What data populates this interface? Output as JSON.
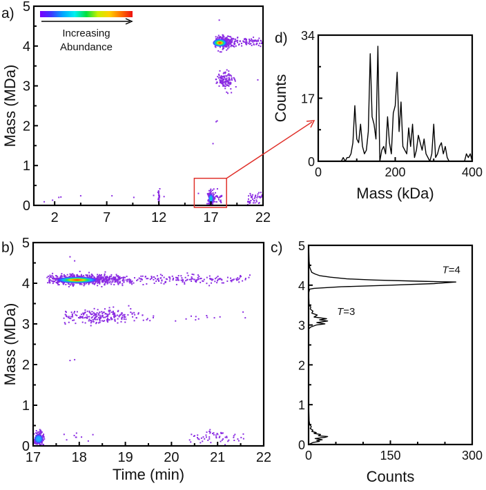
{
  "colors": {
    "scatter_low": "#8a2be2",
    "zoom_box": "#e0302a",
    "line": "#000000"
  },
  "colorbar": {
    "label_line1": "Increasing",
    "label_line2": "Abundance",
    "stops": [
      "#7b00ff",
      "#3a3aff",
      "#00a8ff",
      "#00f0f0",
      "#00e040",
      "#c8f000",
      "#ffd000",
      "#ff7000",
      "#ee1010"
    ]
  },
  "chart_data": [
    {
      "panel": "a",
      "panel_label": "a)",
      "type": "scatter",
      "xlabel": "",
      "ylabel": "Mass (MDa)",
      "xlim": [
        0,
        22
      ],
      "ylim": [
        0,
        5
      ],
      "xticks": [
        2,
        7,
        12,
        17,
        22
      ],
      "xtick_labels": [
        "2",
        "7",
        "12",
        "17",
        "22"
      ],
      "yticks": [
        0,
        1,
        2,
        3,
        4,
        5
      ],
      "ytick_labels": [
        "0",
        "1",
        "2",
        "3",
        "4",
        "5"
      ],
      "zoom_region": {
        "x": [
          15.4,
          18.5
        ],
        "y": [
          0,
          0.68
        ]
      },
      "clusters": [
        {
          "t": 18.3,
          "m": 4.1,
          "st": 0.5,
          "sm": 0.08,
          "n": 260,
          "tmin": 17.4,
          "tmax": 22
        },
        {
          "t": 20.6,
          "m": 4.1,
          "st": 0.9,
          "sm": 0.05,
          "n": 80,
          "tmin": 17.4,
          "tmax": 22
        },
        {
          "t": 18.3,
          "m": 3.15,
          "st": 0.45,
          "sm": 0.1,
          "n": 130,
          "tmin": 17.4,
          "tmax": 22
        },
        {
          "t": 17.0,
          "m": 0.18,
          "st": 0.15,
          "sm": 0.09,
          "n": 120,
          "tmin": 16.5,
          "tmax": 17.6
        },
        {
          "t": 21.2,
          "m": 0.2,
          "st": 0.45,
          "sm": 0.09,
          "n": 45,
          "tmin": 20.3,
          "tmax": 22
        },
        {
          "t": 12.0,
          "m": 0.2,
          "st": 0.05,
          "sm": 0.12,
          "n": 25,
          "tmin": 11.4,
          "tmax": 12.6
        },
        {
          "t": 17.6,
          "m": 0.18,
          "st": 0.4,
          "sm": 0.08,
          "n": 25,
          "tmin": 15.5,
          "tmax": 18.5
        }
      ],
      "isolated_points": [
        [
          1.0,
          0.09
        ],
        [
          1.8,
          0.13
        ],
        [
          2.4,
          0.2
        ],
        [
          2.6,
          0.21
        ],
        [
          4.5,
          0.24
        ],
        [
          7.5,
          0.24
        ],
        [
          9.6,
          0.2
        ],
        [
          11.5,
          0.25
        ],
        [
          12.5,
          0.22
        ],
        [
          15.8,
          0.3
        ],
        [
          17.5,
          2.1
        ],
        [
          17.6,
          2.12
        ],
        [
          17.2,
          1.55
        ],
        [
          17.8,
          4.65
        ],
        [
          22,
          4.25
        ],
        [
          21.5,
          3.15
        ]
      ],
      "hotspots": [
        {
          "t": 17.85,
          "m": 4.08,
          "rt": 0.7,
          "rm": 0.1,
          "peak": "#ee1010"
        },
        {
          "t": 17.0,
          "m": 0.17,
          "rt": 0.25,
          "rm": 0.12,
          "peak": "#00e0a0"
        }
      ]
    },
    {
      "panel": "b",
      "panel_label": "b)",
      "type": "scatter",
      "xlabel": "Time (min)",
      "ylabel": "Mass (MDa)",
      "xlim": [
        17,
        22
      ],
      "ylim": [
        0,
        5
      ],
      "xticks": [
        17,
        18,
        19,
        20,
        21,
        22
      ],
      "xtick_labels": [
        "17",
        "18",
        "19",
        "20",
        "21",
        "22"
      ],
      "yticks": [
        0,
        1,
        2,
        3,
        4,
        5
      ],
      "ytick_labels": [
        "0",
        "1",
        "2",
        "3",
        "4",
        "5"
      ],
      "clusters": [
        {
          "t": 18.1,
          "m": 4.09,
          "st": 0.5,
          "sm": 0.06,
          "n": 700,
          "tmin": 17.3,
          "tmax": 21.7
        },
        {
          "t": 20.3,
          "m": 4.1,
          "st": 0.8,
          "sm": 0.05,
          "n": 170,
          "tmin": 17.3,
          "tmax": 21.7
        },
        {
          "t": 18.5,
          "m": 3.18,
          "st": 0.45,
          "sm": 0.08,
          "n": 220,
          "tmin": 17.6,
          "tmax": 19.7
        },
        {
          "t": 20.8,
          "m": 3.18,
          "st": 0.5,
          "sm": 0.05,
          "n": 12,
          "tmin": 19.8,
          "tmax": 21.7
        },
        {
          "t": 17.12,
          "m": 0.17,
          "st": 0.06,
          "sm": 0.08,
          "n": 170,
          "tmin": 17.0,
          "tmax": 17.3
        },
        {
          "t": 21.0,
          "m": 0.22,
          "st": 0.4,
          "sm": 0.08,
          "n": 60,
          "tmin": 20.2,
          "tmax": 21.7
        },
        {
          "t": 17.9,
          "m": 0.22,
          "st": 0.2,
          "sm": 0.07,
          "n": 10,
          "tmin": 17.6,
          "tmax": 18.3
        }
      ],
      "isolated_points": [
        [
          17.8,
          4.65
        ],
        [
          17.9,
          4.55
        ],
        [
          17.8,
          2.1
        ],
        [
          17.9,
          2.12
        ],
        [
          21.6,
          3.15
        ],
        [
          21.7,
          4.2
        ]
      ],
      "hotspots": [
        {
          "t": 17.95,
          "m": 4.08,
          "rt": 0.45,
          "rm": 0.08,
          "peak": "#ee1010"
        },
        {
          "t": 17.12,
          "m": 0.17,
          "rt": 0.1,
          "rm": 0.12,
          "peak": "#20b0ff"
        }
      ]
    },
    {
      "panel": "c",
      "panel_label": "c)",
      "type": "line",
      "orientation": "horizontal",
      "xlabel": "Counts",
      "ylabel": "",
      "xlim": [
        0,
        300
      ],
      "ylim": [
        0,
        5
      ],
      "xticks": [
        0,
        150,
        300
      ],
      "xtick_labels": [
        "0",
        "150",
        "300"
      ],
      "yticks": [
        0,
        1,
        2,
        3,
        4,
        5
      ],
      "ytick_labels": [
        "0",
        "1",
        "2",
        "3",
        "4",
        "5"
      ],
      "annotations": [
        {
          "text_italic": "T",
          "text": "=4",
          "mass": 4.3,
          "counts": 245
        },
        {
          "text_italic": "T",
          "text": "=3",
          "mass": 3.25,
          "counts": 52
        }
      ],
      "mass": [
        0.0,
        0.05,
        0.08,
        0.1,
        0.12,
        0.15,
        0.18,
        0.2,
        0.22,
        0.25,
        0.28,
        0.3,
        0.33,
        0.36,
        0.4,
        0.45,
        0.5,
        0.6,
        1.0,
        2.0,
        2.9,
        2.95,
        3.0,
        3.03,
        3.06,
        3.1,
        3.13,
        3.16,
        3.2,
        3.25,
        3.3,
        3.35,
        3.4,
        3.45,
        3.5,
        3.8,
        3.9,
        3.92,
        3.96,
        4.0,
        4.04,
        4.08,
        4.1,
        4.13,
        4.16,
        4.2,
        4.24,
        4.28,
        4.32,
        4.38,
        4.45,
        4.6,
        5.0
      ],
      "counts": [
        0,
        8,
        20,
        15,
        25,
        12,
        30,
        35,
        18,
        22,
        10,
        14,
        6,
        8,
        3,
        5,
        2,
        1,
        0,
        0,
        0,
        4,
        14,
        30,
        15,
        35,
        20,
        33,
        10,
        16,
        6,
        8,
        3,
        4,
        1,
        0,
        2,
        10,
        60,
        150,
        230,
        270,
        200,
        120,
        70,
        40,
        20,
        12,
        6,
        4,
        2,
        1,
        0
      ]
    },
    {
      "panel": "d",
      "panel_label": "d)",
      "type": "line",
      "xlabel": "Mass (kDa)",
      "ylabel": "Counts",
      "xlim": [
        0,
        400
      ],
      "ylim": [
        0,
        34
      ],
      "xticks": [
        0,
        200,
        400
      ],
      "xtick_labels": [
        "0",
        "200",
        "400"
      ],
      "yticks": [
        0,
        17,
        34
      ],
      "ytick_labels": [
        "0",
        "17",
        "34"
      ],
      "x": [
        60,
        65,
        70,
        75,
        80,
        85,
        90,
        95,
        100,
        105,
        110,
        115,
        120,
        125,
        130,
        135,
        140,
        145,
        150,
        155,
        160,
        165,
        170,
        175,
        180,
        185,
        190,
        195,
        200,
        205,
        210,
        215,
        220,
        225,
        230,
        235,
        240,
        245,
        250,
        255,
        260,
        265,
        270,
        275,
        280,
        285,
        290,
        295,
        300,
        305,
        310,
        315,
        320,
        325,
        330,
        335,
        340,
        345,
        380,
        385,
        390,
        395,
        400
      ],
      "y": [
        0,
        1,
        0,
        1,
        1,
        2,
        5,
        15,
        6,
        5,
        10,
        4,
        2,
        3,
        8,
        29,
        12,
        10,
        6,
        31,
        0,
        3,
        4,
        2,
        12,
        5,
        2,
        13,
        15,
        24,
        8,
        16,
        4,
        3,
        2,
        9,
        4,
        10,
        1,
        3,
        7,
        5,
        3,
        6,
        2,
        1,
        0,
        2,
        10,
        1,
        2,
        4,
        5,
        2,
        4,
        1,
        0,
        0,
        0,
        2,
        1,
        2,
        0
      ]
    }
  ]
}
